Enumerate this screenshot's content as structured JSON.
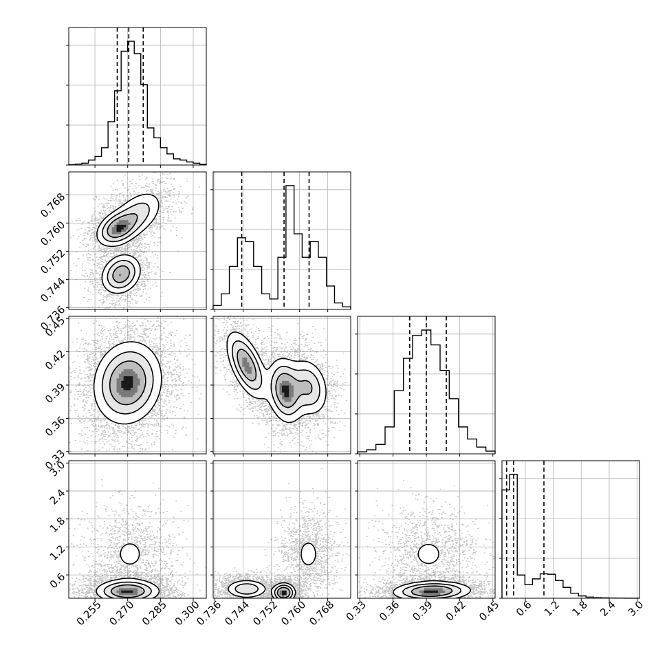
{
  "chart_data": {
    "type": "corner",
    "colors": {
      "line": "#000000",
      "grid": "#b0b0b0",
      "scatter": "#555555"
    },
    "parameters": [
      {
        "range": [
          0.243,
          0.306
        ],
        "ticks": [
          0.255,
          0.27,
          0.285,
          0.3
        ],
        "tick_labels": [
          "0.255",
          "0.270",
          "0.285",
          "0.300"
        ],
        "quantiles": [
          0.2652,
          0.2705,
          0.2771
        ]
      },
      {
        "range": [
          0.7355,
          0.7745
        ],
        "ticks": [
          0.736,
          0.744,
          0.752,
          0.76,
          0.768
        ],
        "tick_labels": [
          "0.736",
          "0.744",
          "0.752",
          "0.760",
          "0.768"
        ],
        "quantiles": [
          0.7436,
          0.7556,
          0.7627
        ]
      },
      {
        "range": [
          0.328,
          0.452
        ],
        "ticks": [
          0.33,
          0.36,
          0.39,
          0.42,
          0.45
        ],
        "tick_labels": [
          "0.33",
          "0.36",
          "0.39",
          "0.42",
          "0.45"
        ],
        "quantiles": [
          0.375,
          0.39,
          0.408
        ]
      },
      {
        "range": [
          0.1,
          3.05
        ],
        "ticks": [
          0.6,
          1.2,
          1.8,
          2.4,
          3.0
        ],
        "tick_labels": [
          "0.6",
          "1.2",
          "1.8",
          "2.4",
          "3.0"
        ],
        "quantiles": [
          0.2,
          0.35,
          1.0
        ]
      }
    ],
    "histograms": [
      {
        "param": 0,
        "edges_range": [
          0.243,
          0.306
        ],
        "counts": [
          0.3,
          0.8,
          1.5,
          4,
          7,
          14,
          35,
          60,
          92,
          100,
          90,
          65,
          30,
          22,
          14,
          9,
          5,
          4,
          2.5,
          1.5,
          0.6
        ]
      },
      {
        "param": 1,
        "edges_range": [
          0.7355,
          0.7745
        ],
        "counts": [
          3,
          12,
          33,
          55,
          52,
          33,
          12,
          8,
          40,
          95,
          58,
          40,
          52,
          40,
          18,
          5,
          2
        ]
      },
      {
        "param": 2,
        "edges_range": [
          0.328,
          0.452
        ],
        "counts": [
          1.5,
          3,
          7,
          20,
          47,
          71,
          88,
          92,
          81,
          62,
          41,
          20,
          11,
          5,
          2
        ]
      },
      {
        "param": 3,
        "edges_range": [
          0.1,
          3.05
        ],
        "counts": [
          28,
          32,
          6,
          3.5,
          5,
          6.3,
          6.2,
          4.6,
          2.8,
          1.3,
          0.6,
          0.3,
          0.15,
          0.1,
          0.05,
          0.03,
          0.02,
          0.01
        ]
      }
    ],
    "joint_distributions": [
      {
        "x_param": 0,
        "y_param": 1,
        "modes": [
          {
            "x": 0.2655,
            "y": 0.7585,
            "sx": 0.0048,
            "sy": 0.0025,
            "rho": 0.35,
            "weight": 0.35
          },
          {
            "x": 0.2745,
            "y": 0.7625,
            "sx": 0.006,
            "sy": 0.0035,
            "rho": 0.45,
            "weight": 0.3
          },
          {
            "x": 0.267,
            "y": 0.7455,
            "sx": 0.0045,
            "sy": 0.0028,
            "rho": 0.2,
            "weight": 0.35
          }
        ]
      },
      {
        "x_param": 0,
        "y_param": 2,
        "modes": [
          {
            "x": 0.27,
            "y": 0.392,
            "sx": 0.0075,
            "sy": 0.018,
            "rho": 0.1,
            "weight": 1.0
          }
        ]
      },
      {
        "x_param": 1,
        "y_param": 2,
        "modes": [
          {
            "x": 0.745,
            "y": 0.408,
            "sx": 0.0028,
            "sy": 0.015,
            "rho": -0.6,
            "weight": 0.35
          },
          {
            "x": 0.756,
            "y": 0.385,
            "sx": 0.0025,
            "sy": 0.014,
            "rho": -0.2,
            "weight": 0.4
          },
          {
            "x": 0.7625,
            "y": 0.388,
            "sx": 0.0028,
            "sy": 0.013,
            "rho": -0.2,
            "weight": 0.25
          }
        ]
      },
      {
        "x_param": 0,
        "y_param": 3,
        "modes": [
          {
            "x": 0.27,
            "y": 0.25,
            "sx": 0.007,
            "sy": 0.12,
            "rho": 0.0,
            "weight": 0.7
          },
          {
            "x": 0.271,
            "y": 1.05,
            "sx": 0.007,
            "sy": 0.35,
            "rho": 0.0,
            "weight": 0.3
          }
        ]
      },
      {
        "x_param": 1,
        "y_param": 3,
        "modes": [
          {
            "x": 0.745,
            "y": 0.3,
            "sx": 0.003,
            "sy": 0.1,
            "rho": 0.0,
            "weight": 0.35
          },
          {
            "x": 0.7555,
            "y": 0.22,
            "sx": 0.0016,
            "sy": 0.1,
            "rho": 0.0,
            "weight": 0.35
          },
          {
            "x": 0.7625,
            "y": 1.05,
            "sx": 0.0028,
            "sy": 0.32,
            "rho": 0.0,
            "weight": 0.3
          }
        ]
      },
      {
        "x_param": 2,
        "y_param": 3,
        "modes": [
          {
            "x": 0.395,
            "y": 0.25,
            "sx": 0.017,
            "sy": 0.1,
            "rho": 0.1,
            "weight": 0.7
          },
          {
            "x": 0.392,
            "y": 1.05,
            "sx": 0.015,
            "sy": 0.33,
            "rho": 0.0,
            "weight": 0.3
          }
        ]
      }
    ]
  }
}
